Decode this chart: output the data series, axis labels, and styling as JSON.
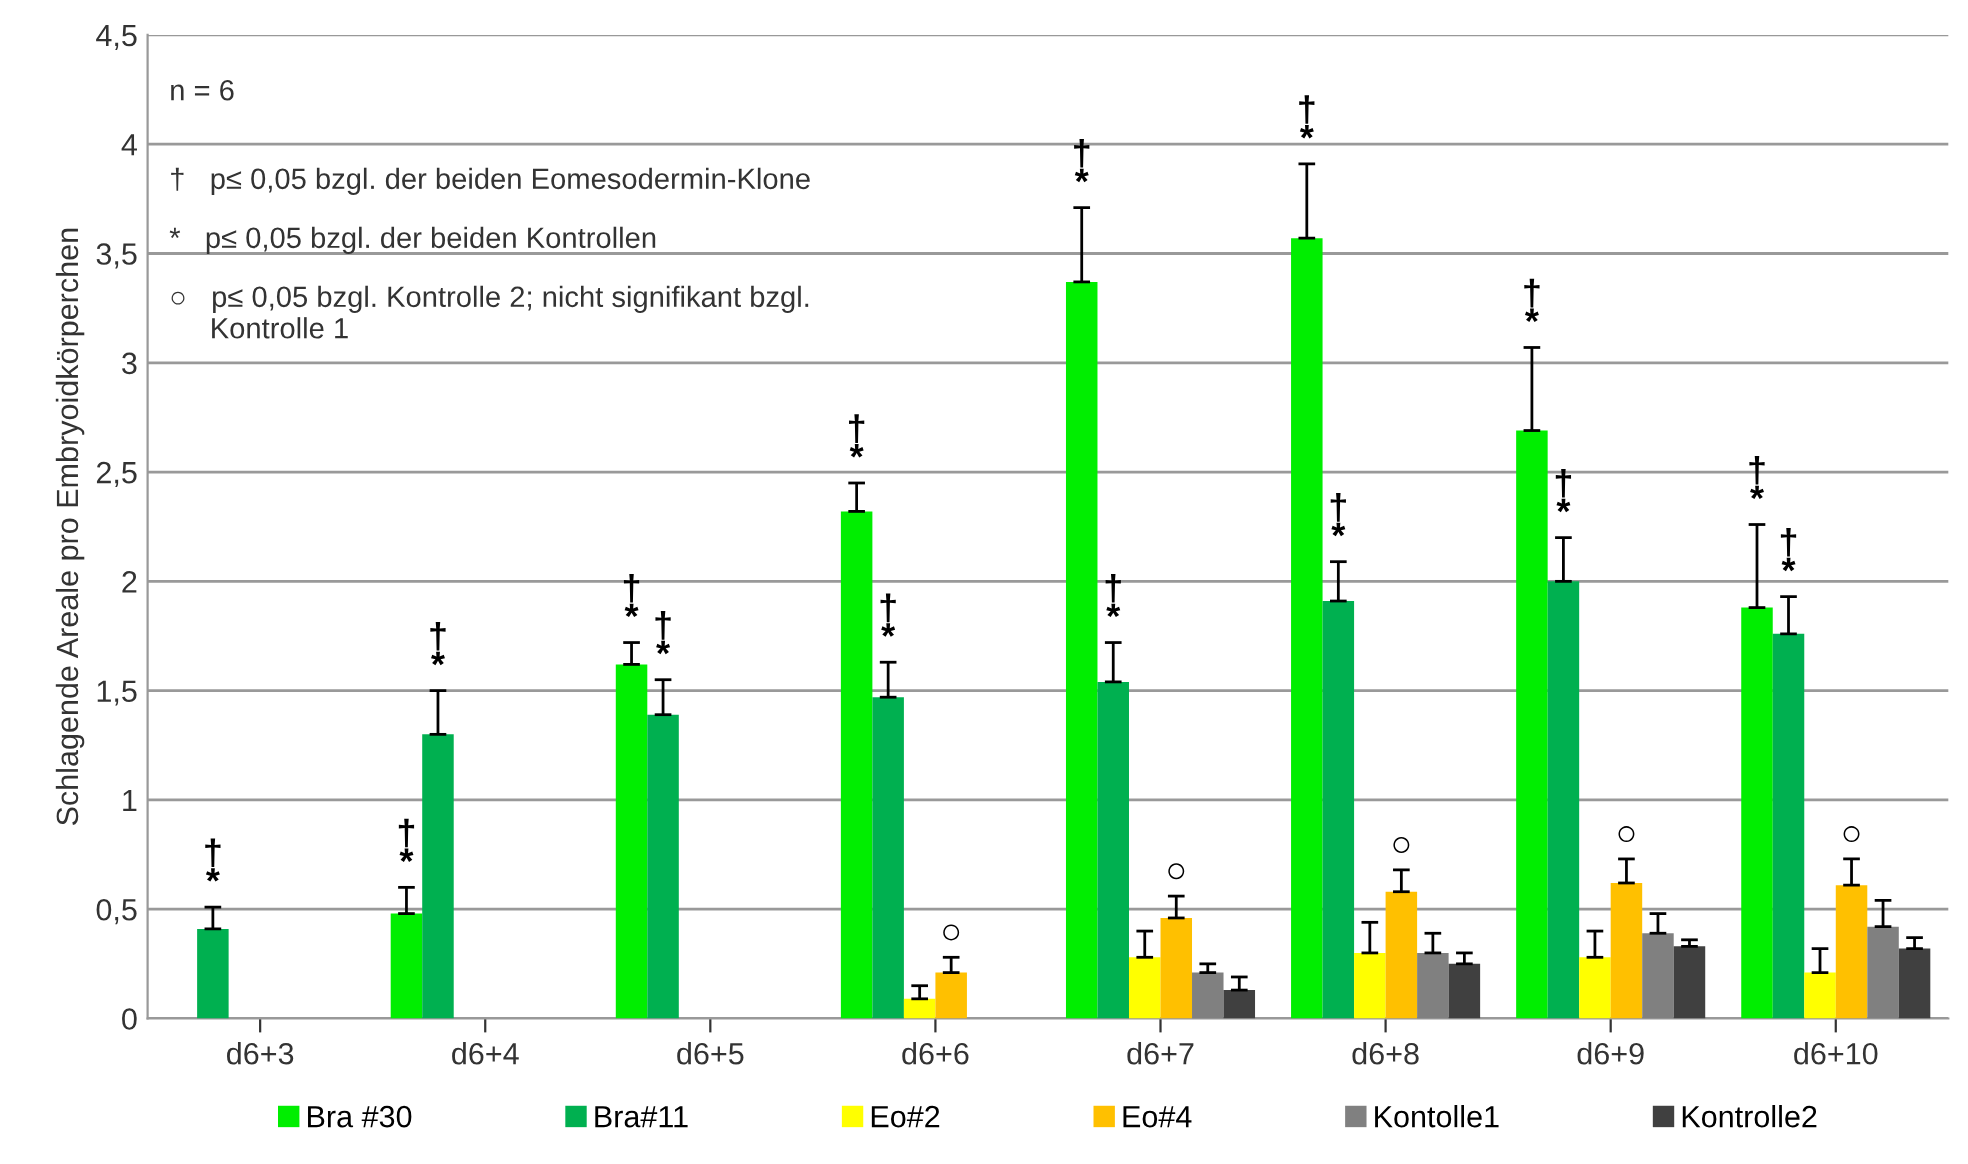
{
  "chart_data": {
    "type": "bar",
    "ylabel": "Schlagende Areale pro Embryoidkörperchen",
    "categories": [
      "d6+3",
      "d6+4",
      "d6+5",
      "d6+6",
      "d6+7",
      "d6+8",
      "d6+9",
      "d6+10"
    ],
    "series": [
      {
        "name": "Bra #30",
        "color": "#00ee00",
        "values": [
          null,
          0.48,
          1.62,
          2.32,
          3.37,
          3.57,
          2.69,
          1.88
        ],
        "errors": [
          null,
          [
            0.48,
            0.6
          ],
          [
            1.62,
            1.72
          ],
          [
            2.32,
            2.45
          ],
          [
            3.37,
            3.71
          ],
          [
            3.57,
            3.91
          ],
          [
            2.69,
            3.07
          ],
          [
            1.88,
            2.26
          ]
        ],
        "value_labels": [
          null,
          "†\n*",
          "†\n*",
          "†\n*",
          "†\n*",
          "†\n*",
          "†\n*",
          "†\n*"
        ]
      },
      {
        "name": "Bra#11",
        "color": "#00b050",
        "values": [
          0.41,
          1.3,
          1.39,
          1.47,
          1.54,
          1.91,
          2.0,
          1.76
        ],
        "errors": [
          [
            0.41,
            0.51
          ],
          [
            1.3,
            1.5
          ],
          [
            1.39,
            1.55
          ],
          [
            1.47,
            1.63
          ],
          [
            1.54,
            1.72
          ],
          [
            1.91,
            2.09
          ],
          [
            2.0,
            2.2
          ],
          [
            1.76,
            1.93
          ]
        ],
        "value_labels": [
          "†\n*",
          "†\n*",
          "†\n*",
          "†\n*",
          "†\n*",
          "†\n*",
          "†\n*",
          "†\n*"
        ]
      },
      {
        "name": "Eo#2",
        "color": "#ffff00",
        "values": [
          null,
          null,
          null,
          0.09,
          0.28,
          0.3,
          0.28,
          0.21
        ],
        "errors": [
          null,
          null,
          null,
          [
            0.09,
            0.15
          ],
          [
            0.28,
            0.4
          ],
          [
            0.3,
            0.44
          ],
          [
            0.28,
            0.4
          ],
          [
            0.21,
            0.32
          ]
        ]
      },
      {
        "name": "Eo#4",
        "color": "#ffc000",
        "values": [
          null,
          null,
          null,
          0.21,
          0.46,
          0.58,
          0.62,
          0.61
        ],
        "errors": [
          null,
          null,
          null,
          [
            0.21,
            0.28
          ],
          [
            0.46,
            0.56
          ],
          [
            0.58,
            0.68
          ],
          [
            0.62,
            0.73
          ],
          [
            0.61,
            0.73
          ]
        ],
        "value_labels": [
          null,
          null,
          null,
          "○",
          "○",
          "○",
          "○",
          "○"
        ]
      },
      {
        "name": "Kontolle1",
        "color": "#808080",
        "values": [
          null,
          null,
          null,
          null,
          0.21,
          0.3,
          0.39,
          0.42
        ],
        "errors": [
          null,
          null,
          null,
          null,
          [
            0.21,
            0.25
          ],
          [
            0.3,
            0.39
          ],
          [
            0.39,
            0.48
          ],
          [
            0.42,
            0.54
          ]
        ]
      },
      {
        "name": "Kontrolle2",
        "color": "#404040",
        "values": [
          null,
          null,
          null,
          null,
          0.13,
          0.25,
          0.33,
          0.32
        ],
        "errors": [
          null,
          null,
          null,
          null,
          [
            0.13,
            0.19
          ],
          [
            0.25,
            0.3
          ],
          [
            0.33,
            0.36
          ],
          [
            0.32,
            0.37
          ]
        ]
      }
    ],
    "ylim": [
      0,
      4.5
    ],
    "yticks": [
      0,
      {
        "value": 0.5,
        "label": "0,5"
      },
      1,
      {
        "value": 1.5,
        "label": "1,5"
      },
      2,
      {
        "value": 2.5,
        "label": "2,5"
      },
      3,
      {
        "value": 3.5,
        "label": "3,5"
      },
      4,
      {
        "value": 4.5,
        "label": "4,5"
      }
    ],
    "grid": "y",
    "legend": "bottom",
    "annotations": [
      "n = 6",
      "†   p≤ 0,05 bzgl. der beiden Eomesodermin-Klone",
      "*   p≤ 0,05 bzgl. der beiden Kontrollen",
      "○   p≤ 0,05 bzgl. Kontrolle 2; nicht signifikant bzgl.\n     Kontrolle 1"
    ]
  }
}
